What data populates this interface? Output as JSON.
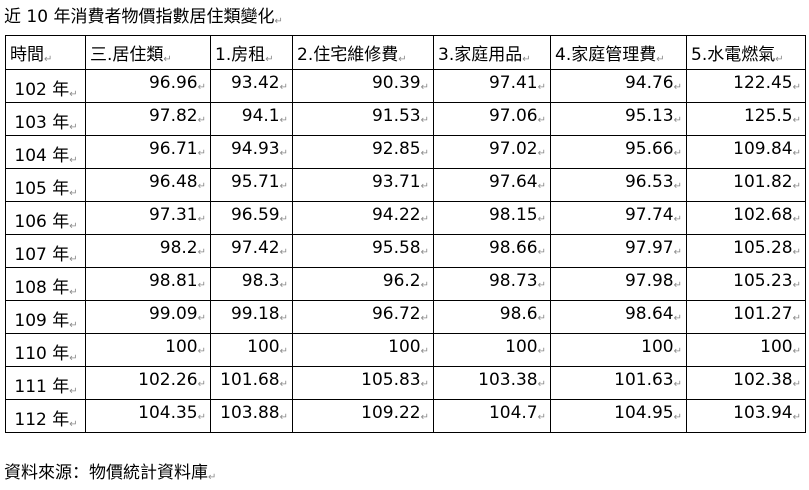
{
  "caption": "近 10 年消費者物價指數居住類變化",
  "source": "資料來源：物價統計資料庫",
  "paragraph_mark": "↵",
  "table": {
    "headers": [
      "時間",
      "三.居住類",
      "1.房租",
      "2.住宅維修費",
      "3.家庭用品",
      "4.家庭管理費",
      "5.水電燃氣"
    ],
    "rows": [
      [
        "102 年",
        "96.96",
        "93.42",
        "90.39",
        "97.41",
        "94.76",
        "122.45"
      ],
      [
        "103 年",
        "97.82",
        "94.1",
        "91.53",
        "97.06",
        "95.13",
        "125.5"
      ],
      [
        "104 年",
        "96.71",
        "94.93",
        "92.85",
        "97.02",
        "95.66",
        "109.84"
      ],
      [
        "105 年",
        "96.48",
        "95.71",
        "93.71",
        "97.64",
        "96.53",
        "101.82"
      ],
      [
        "106 年",
        "97.31",
        "96.59",
        "94.22",
        "98.15",
        "97.74",
        "102.68"
      ],
      [
        "107 年",
        "98.2",
        "97.42",
        "95.58",
        "98.66",
        "97.97",
        "105.28"
      ],
      [
        "108 年",
        "98.81",
        "98.3",
        "96.2",
        "98.73",
        "97.98",
        "105.23"
      ],
      [
        "109 年",
        "99.09",
        "99.18",
        "96.72",
        "98.6",
        "98.64",
        "101.27"
      ],
      [
        "110 年",
        "100",
        "100",
        "100",
        "100",
        "100",
        "100"
      ],
      [
        "111 年",
        "102.26",
        "101.68",
        "105.83",
        "103.38",
        "101.63",
        "102.38"
      ],
      [
        "112 年",
        "104.35",
        "103.88",
        "109.22",
        "104.7",
        "104.95",
        "103.94"
      ]
    ]
  }
}
